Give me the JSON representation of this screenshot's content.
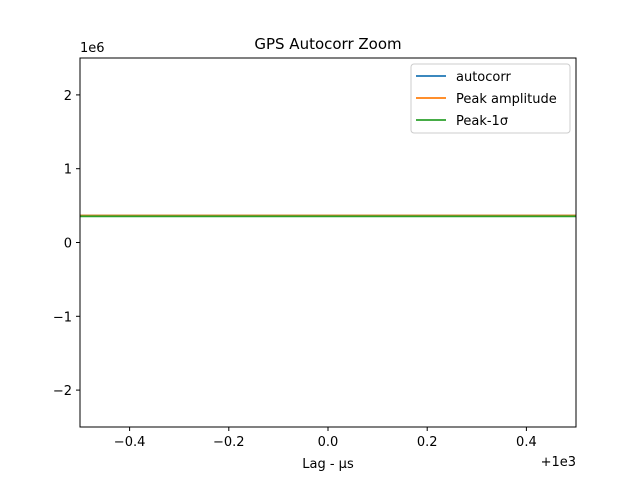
{
  "chart_data": {
    "type": "line",
    "title": "GPS Autocorr Zoom",
    "xlabel": "Lag - μs",
    "ylabel": "",
    "xlim": [
      999.5,
      1000.5
    ],
    "ylim": [
      -2500000,
      2500000
    ],
    "x_ticks": [
      -0.4,
      -0.2,
      0.0,
      0.2,
      0.4
    ],
    "x_tick_labels": [
      "−0.4",
      "−0.2",
      "0.0",
      "0.2",
      "0.4"
    ],
    "x_offset_label": "+1e3",
    "y_ticks": [
      -2,
      -1,
      0,
      1,
      2
    ],
    "y_tick_labels": [
      "−2",
      "−1",
      "0",
      "1",
      "2"
    ],
    "y_scale_label": "1e6",
    "y_scale": 1000000,
    "grid": false,
    "legend_position": "top-right",
    "series": [
      {
        "name": "autocorr",
        "color": "#1f77b4",
        "x": [
          999.5,
          1000.5
        ],
        "y": [
          365000,
          365000
        ]
      },
      {
        "name": "Peak amplitude",
        "color": "#ff7f0e",
        "x": [
          999.5,
          1000.5
        ],
        "y": [
          365000,
          365000
        ]
      },
      {
        "name": "Peak-1σ",
        "color": "#2ca02c",
        "x": [
          999.5,
          1000.5
        ],
        "y": [
          355000,
          355000
        ]
      }
    ]
  }
}
